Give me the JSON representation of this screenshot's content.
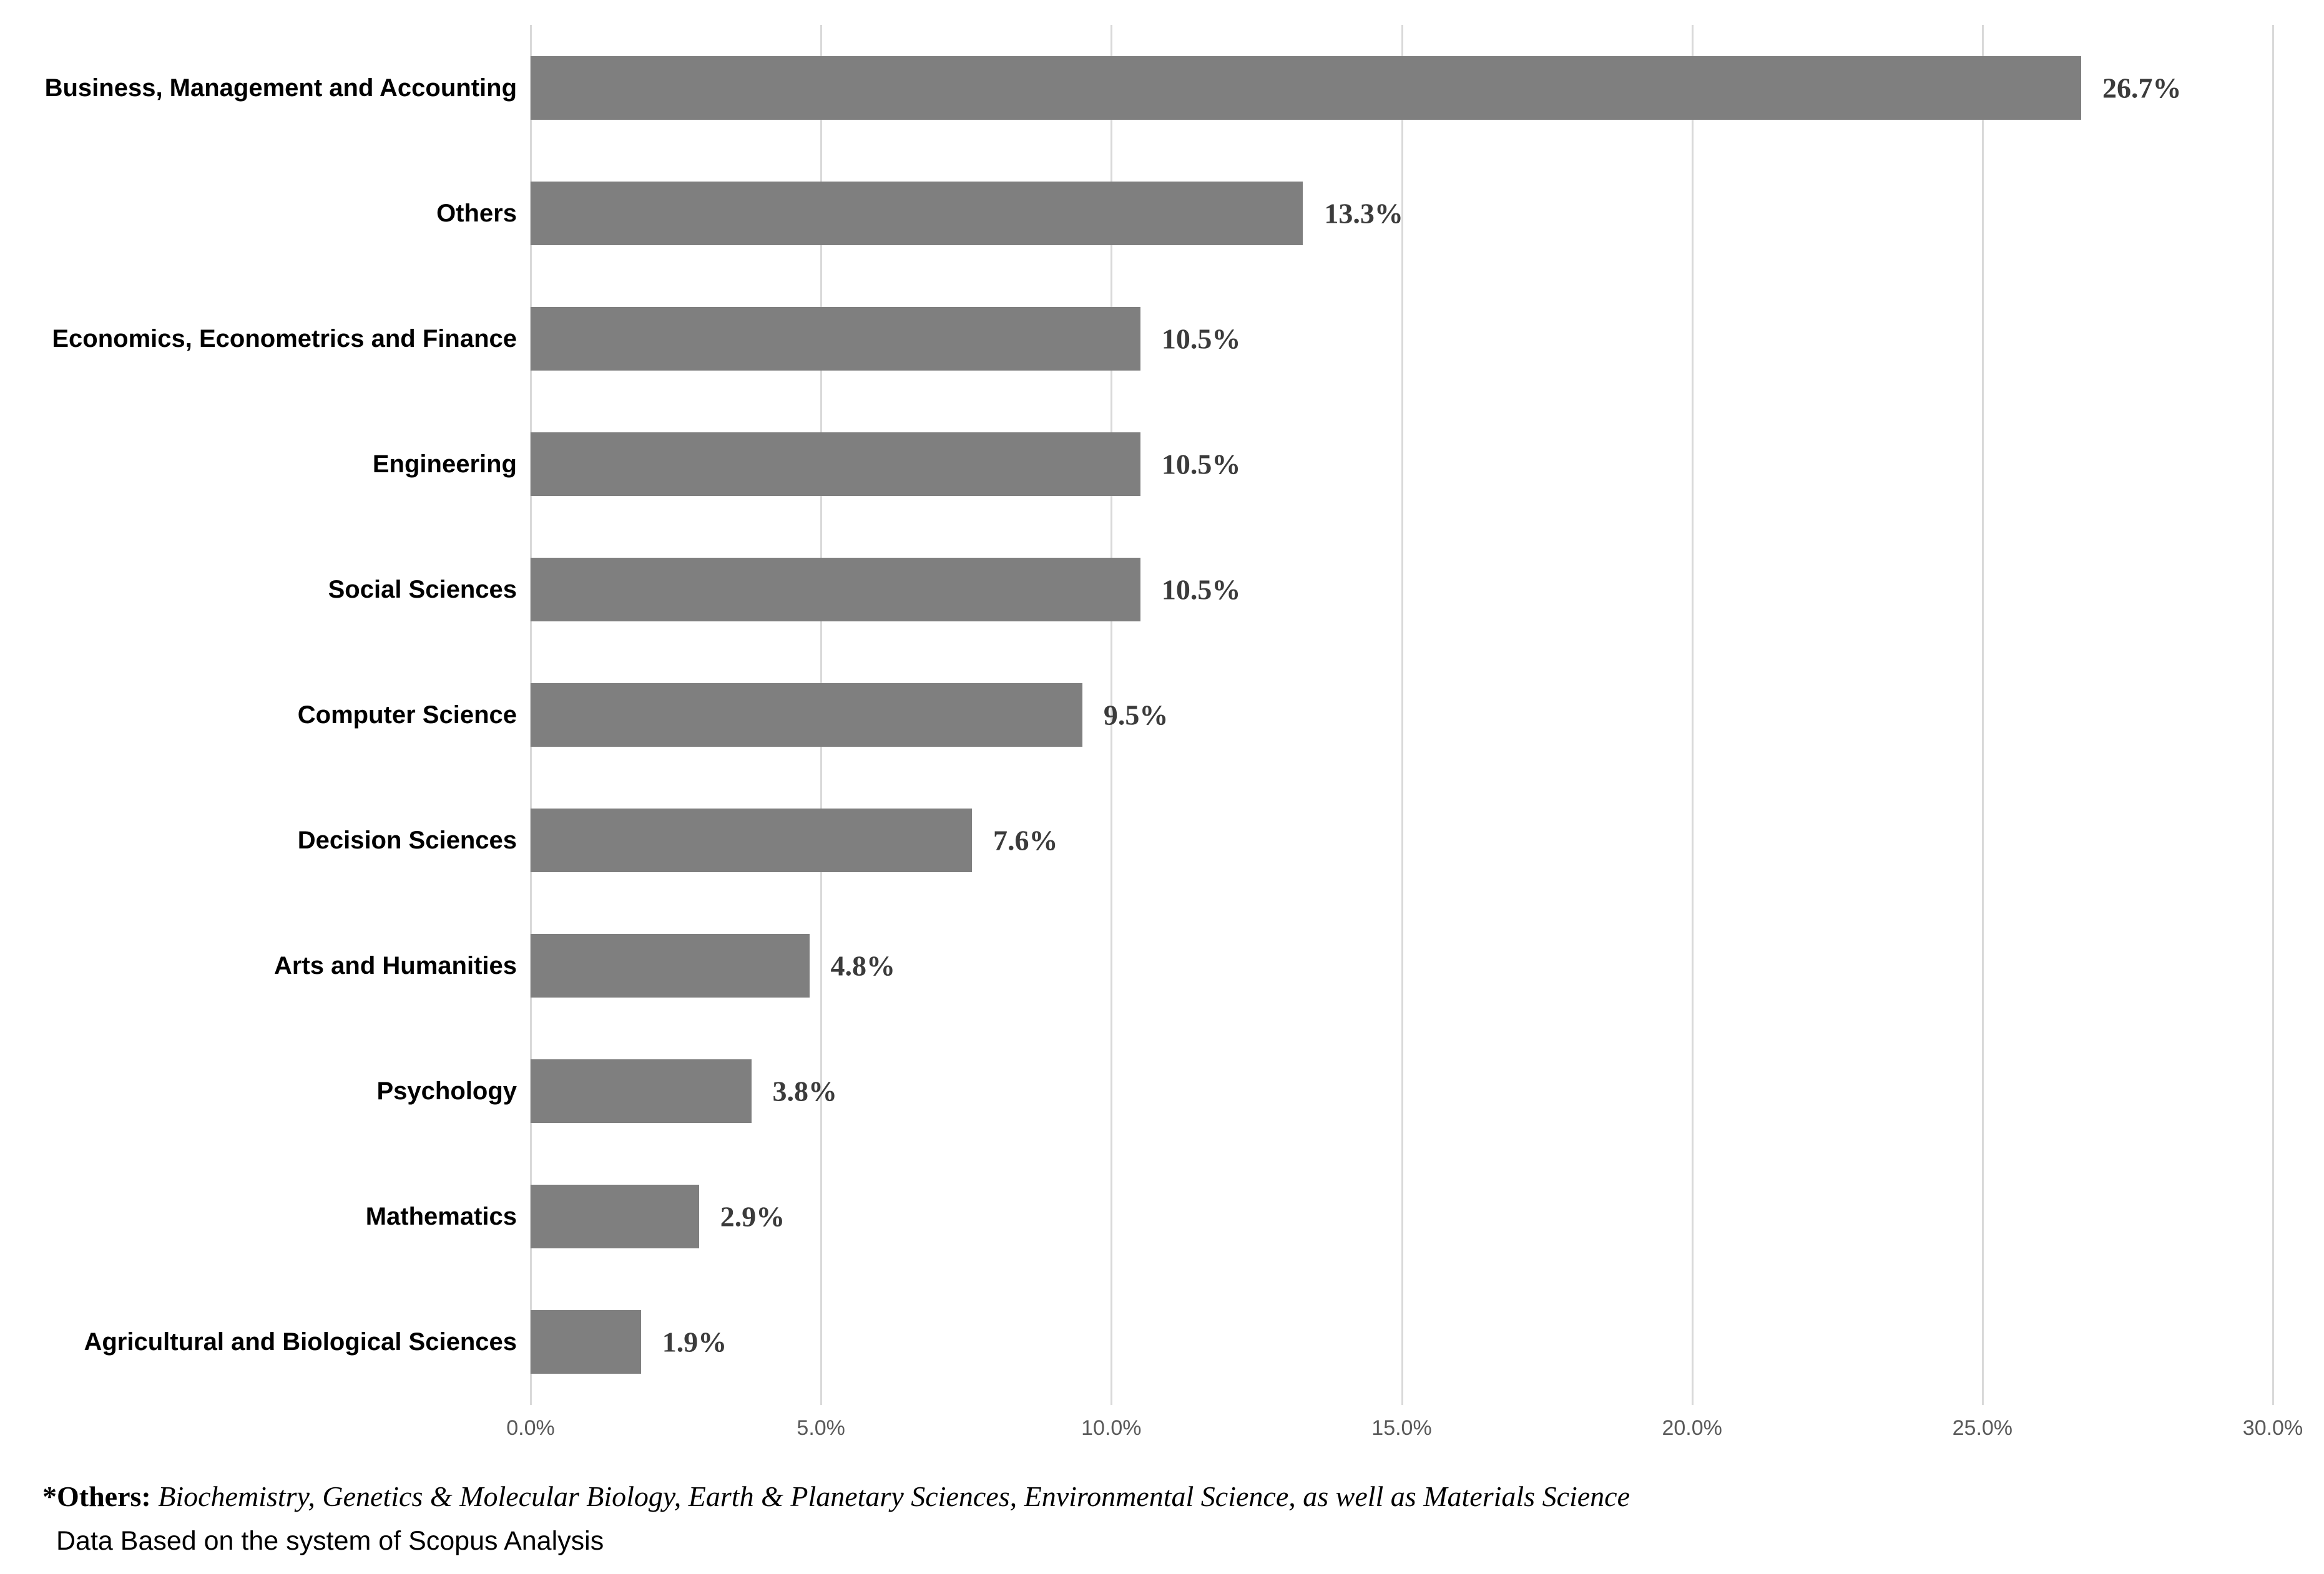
{
  "chart_data": {
    "type": "bar",
    "orientation": "horizontal",
    "title": "",
    "xlabel": "",
    "ylabel": "",
    "categories": [
      "Business, Management and Accounting",
      "Others",
      "Economics, Econometrics and Finance",
      "Engineering",
      "Social Sciences",
      "Computer Science",
      "Decision Sciences",
      "Arts and Humanities",
      "Psychology",
      "Mathematics",
      "Agricultural and Biological Sciences"
    ],
    "values": [
      26.7,
      13.3,
      10.5,
      10.5,
      10.5,
      9.5,
      7.6,
      4.8,
      3.8,
      2.9,
      1.9
    ],
    "value_labels": [
      "26.7%",
      "13.3%",
      "10.5%",
      "10.5%",
      "10.5%",
      "9.5%",
      "7.6%",
      "4.8%",
      "3.8%",
      "2.9%",
      "1.9%"
    ],
    "xlim": [
      0,
      30
    ],
    "x_tick_labels": [
      "0.0%",
      "5.0%",
      "10.0%",
      "15.0%",
      "20.0%",
      "25.0%",
      "30.0%"
    ],
    "x_tick_values": [
      0,
      5,
      10,
      15,
      20,
      25,
      30
    ],
    "grid": true,
    "legend": false,
    "bar_color": "#7F7F7F",
    "gridline_color": "#D9D9D9",
    "category_label_color": "#000000",
    "value_label_color": "#3B3B3B",
    "tick_label_color": "#595959"
  },
  "footnotes": {
    "others_prefix": "*Others:",
    "others_text": " Biochemistry, Genetics & Molecular Biology, Earth & Planetary Sciences, Environmental Science, as well as Materials Science",
    "source": "Data Based on the system of Scopus Analysis"
  }
}
